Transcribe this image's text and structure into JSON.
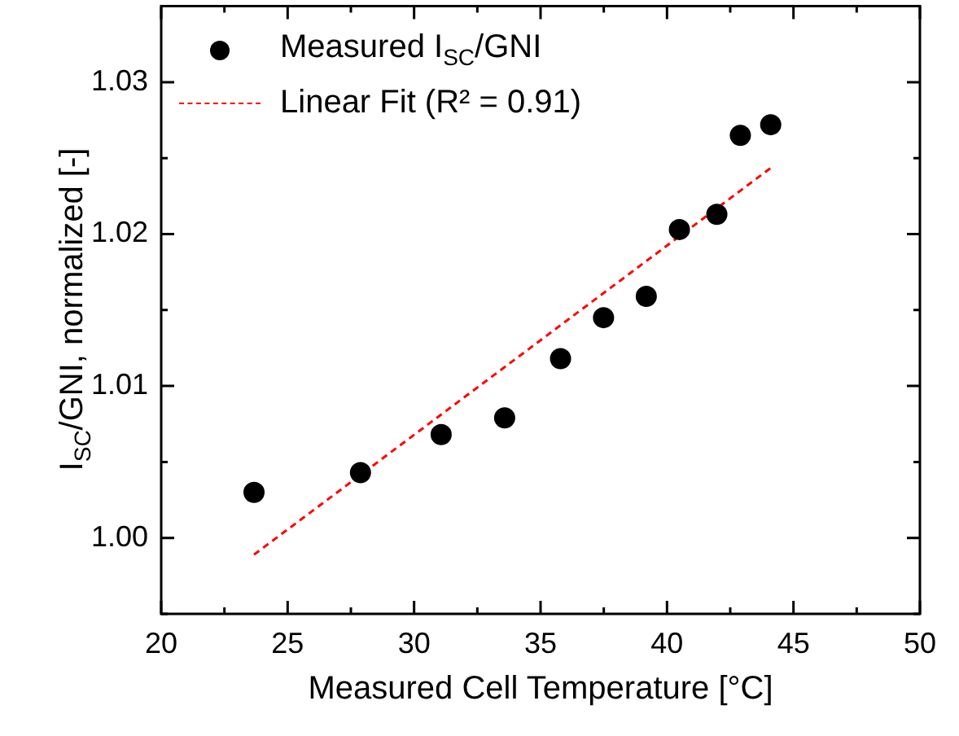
{
  "chart_data": {
    "type": "scatter",
    "xlabel": "Measured Cell Temperature [°C]",
    "ylabel": "I$_{SC}$/GNI, normalized [-]",
    "series": [
      {
        "name": "Measured I$_{SC}$/GNI",
        "type": "scatter",
        "color": "#000000",
        "marker": "circle",
        "x": [
          23.67,
          27.88,
          31.07,
          33.58,
          35.79,
          37.49,
          39.18,
          40.49,
          41.97,
          42.9,
          44.1
        ],
        "values": [
          1.003,
          1.0043,
          1.0068,
          1.0079,
          1.0118,
          1.0145,
          1.0159,
          1.0203,
          1.0213,
          1.0265,
          1.0272
        ]
      },
      {
        "name": "Linear Fit (R² = 0.91)",
        "type": "line",
        "color": "#ff0000",
        "line_style": "dashed",
        "marker": "none",
        "x": [
          23.67,
          44.14
        ],
        "values": [
          0.9989,
          1.0244
        ]
      }
    ],
    "xlim": [
      20,
      50
    ],
    "xticks": [
      20,
      {
        "value": 22.5,
        "label": null
      },
      25,
      {
        "value": 27.5,
        "label": null
      },
      30,
      {
        "value": 32.5,
        "label": null
      },
      35,
      {
        "value": 37.5,
        "label": null
      },
      40,
      {
        "value": 42.5,
        "label": null
      },
      45,
      {
        "value": 47.5,
        "label": null
      },
      50
    ],
    "ylim": [
      0.995,
      1.035
    ],
    "yticks": [
      {
        "value": 0.995,
        "label": null
      },
      {
        "value": 1.0,
        "label": "1.00"
      },
      {
        "value": 1.005,
        "label": null
      },
      {
        "value": 1.01,
        "label": "1.01"
      },
      {
        "value": 1.015,
        "label": null
      },
      {
        "value": 1.02,
        "label": "1.02"
      },
      {
        "value": 1.025,
        "label": null
      },
      {
        "value": 1.03,
        "label": "1.03"
      },
      {
        "value": 1.035,
        "label": null
      }
    ],
    "grid": false,
    "legend": "top left"
  }
}
